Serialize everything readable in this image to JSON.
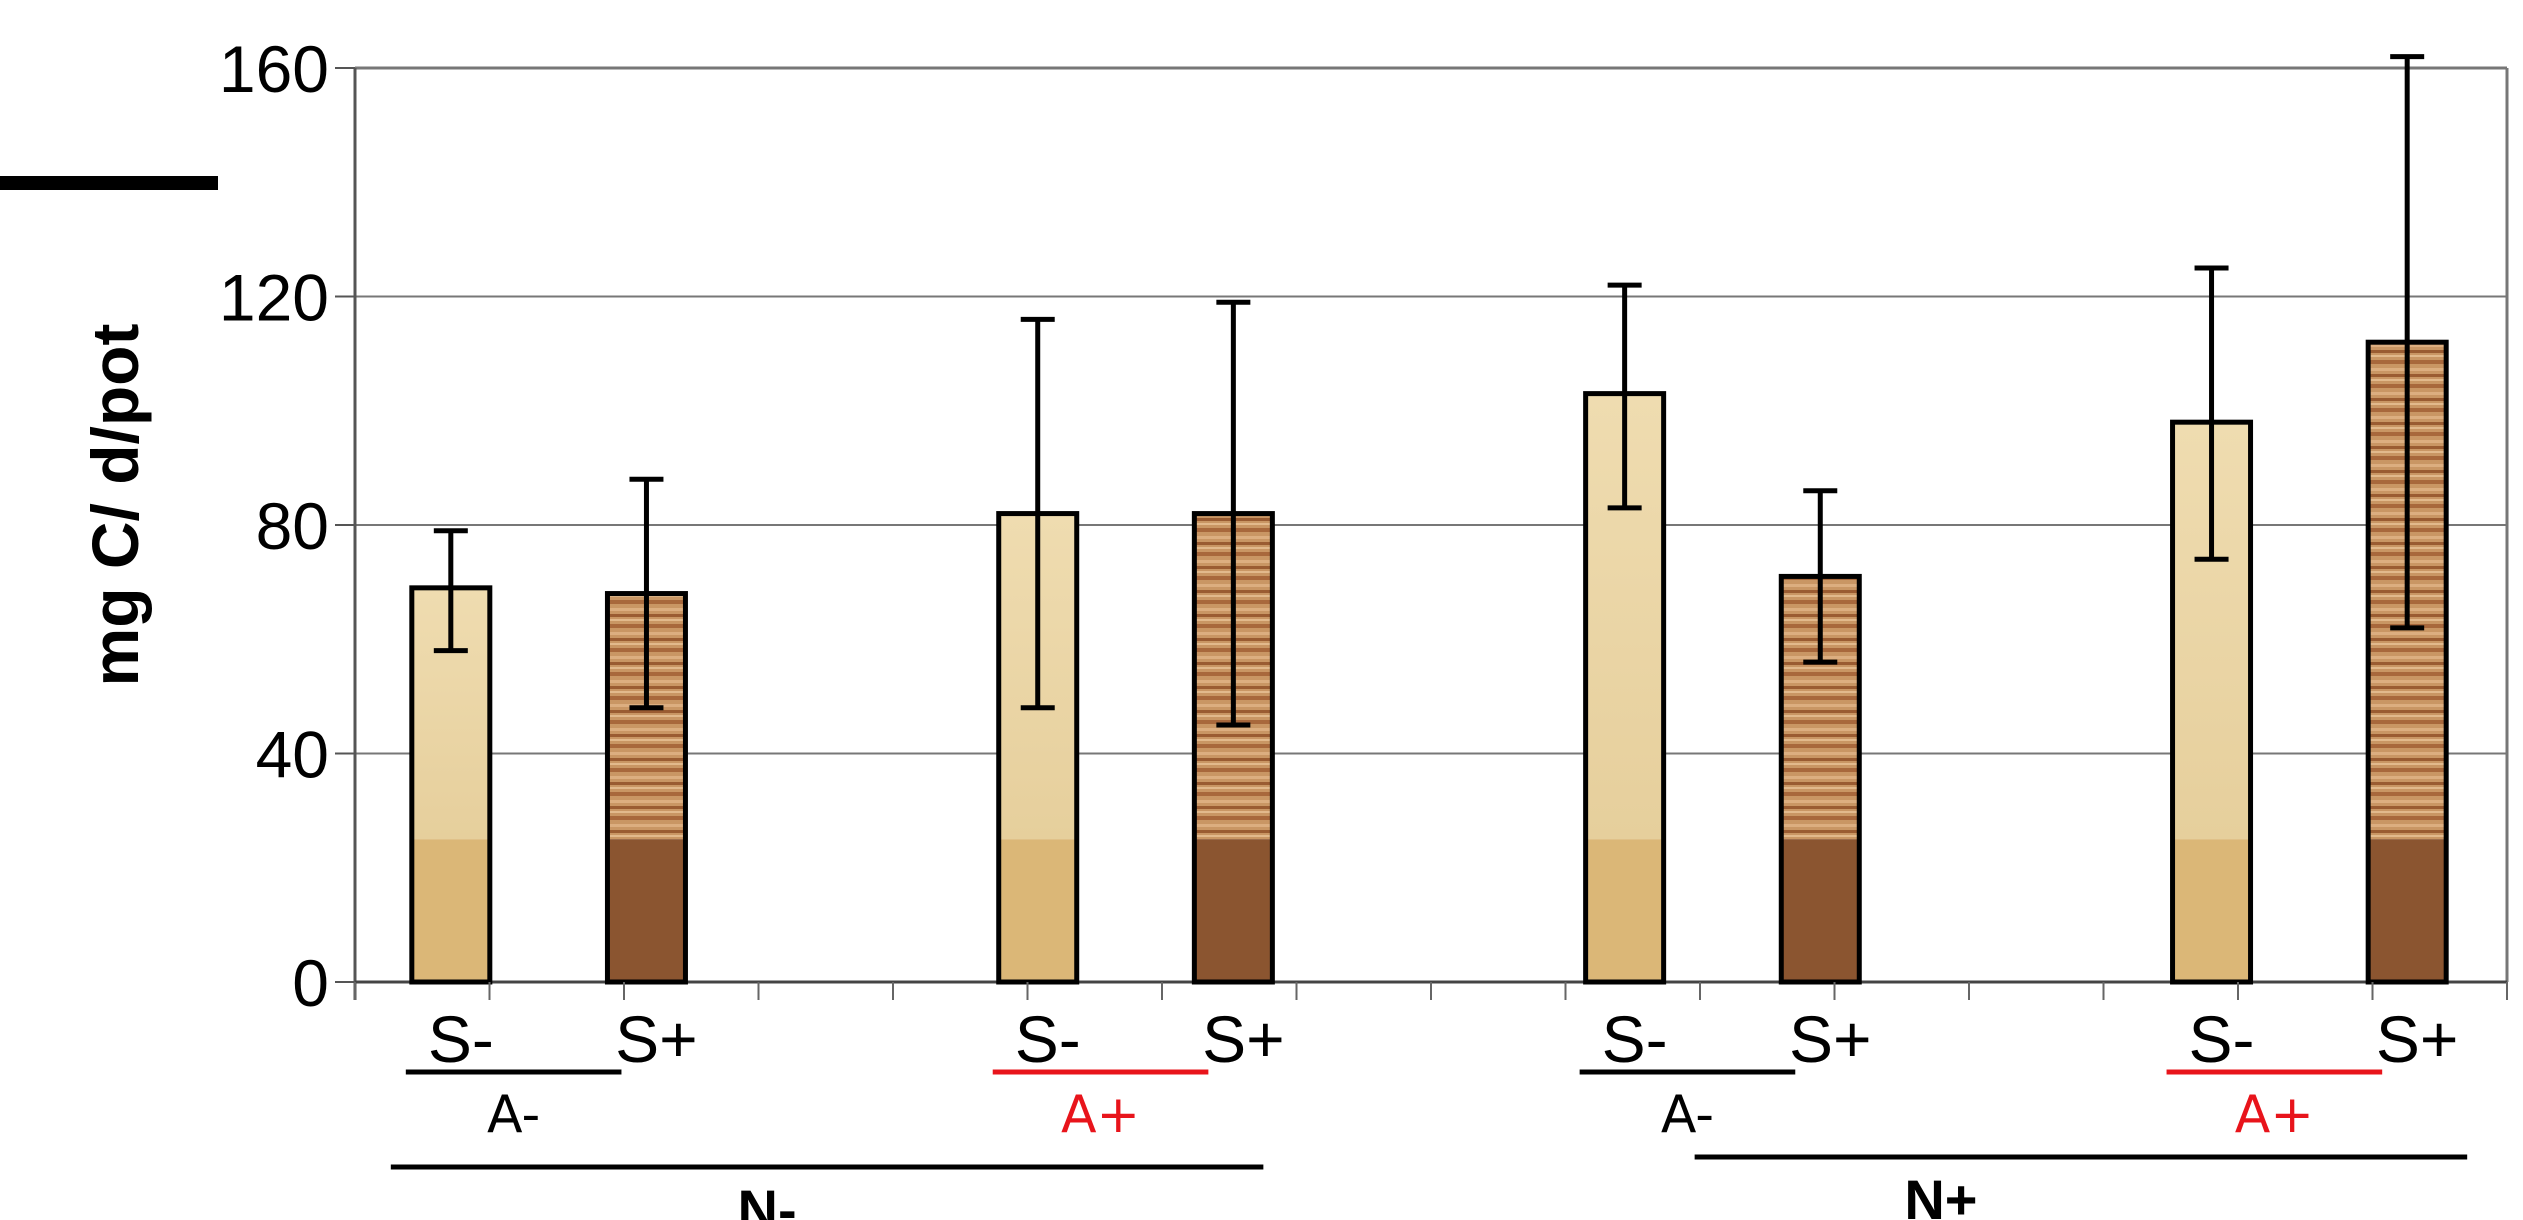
{
  "chart_data": {
    "type": "bar",
    "ylabel": "mg C/ d/pot",
    "ylim": [
      0,
      160
    ],
    "yticks": [
      0,
      40,
      80,
      120,
      160
    ],
    "grid": true,
    "categories": [
      "S-",
      "S+",
      "S-",
      "S+",
      "S-",
      "S+",
      "S-",
      "S+"
    ],
    "values": [
      69,
      68,
      82,
      82,
      103,
      71,
      98,
      112
    ],
    "error_low": [
      58,
      48,
      48,
      45,
      83,
      56,
      74,
      62
    ],
    "error_high": [
      79,
      88,
      116,
      119,
      122,
      86,
      125,
      162
    ],
    "base_values": [
      25,
      25,
      25,
      25,
      25,
      25,
      25,
      25
    ],
    "groups_A": [
      "A-",
      "A+",
      "A-",
      "A+"
    ],
    "groups_N": [
      "N-",
      "N+"
    ],
    "colors": {
      "s_minus_top": "#ead5a6",
      "s_minus_base": "#dbb777",
      "s_plus_top": "#c89466",
      "s_plus_base": "#8b5530",
      "a_minus": "#000000",
      "a_plus": "#e8141b"
    }
  }
}
